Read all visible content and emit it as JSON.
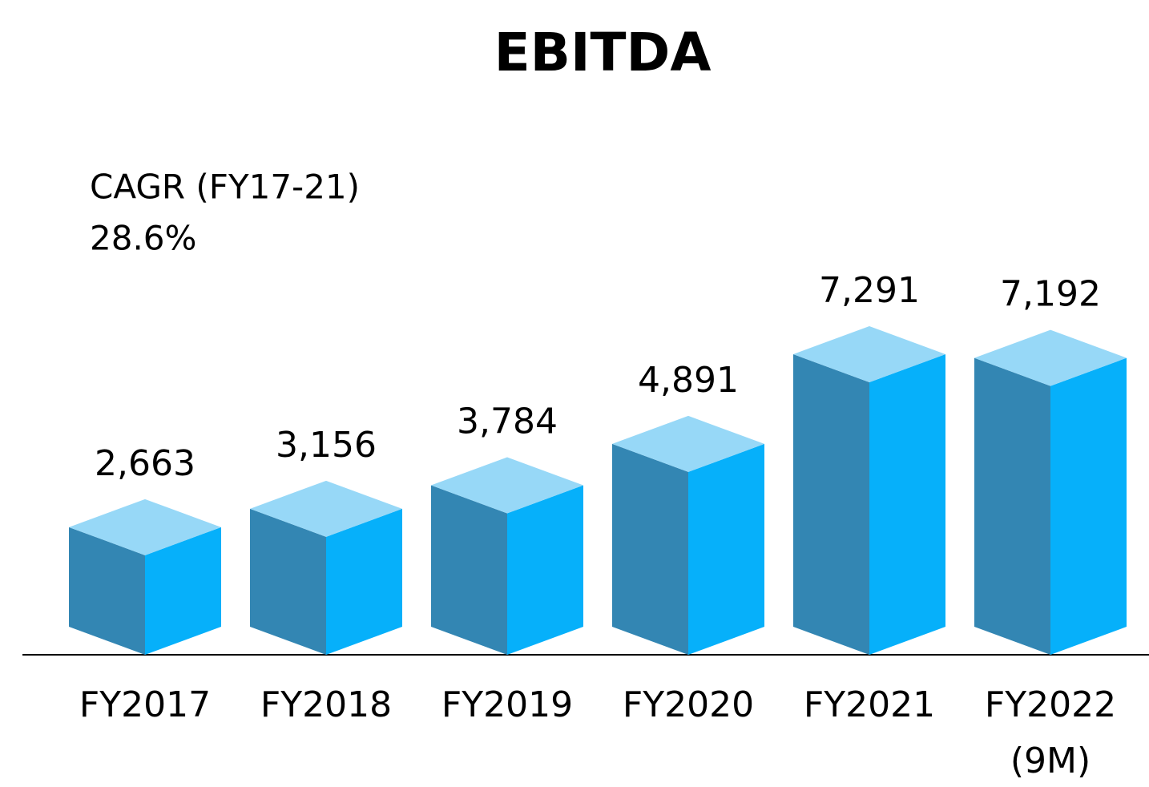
{
  "chart_data": {
    "type": "bar3d",
    "title": "EBITDA",
    "annotations": [
      "CAGR (FY17-21)",
      "28.6%"
    ],
    "categories": [
      "FY2017",
      "FY2018",
      "FY2019",
      "FY2020",
      "FY2021",
      "FY2022 (9M)"
    ],
    "values": [
      2663,
      3156,
      3784,
      4891,
      7291,
      7192
    ],
    "value_labels": [
      "2,663",
      "3,156",
      "3,784",
      "4,891",
      "7,291",
      "7,192"
    ],
    "colors": {
      "left": "#3386b3",
      "right": "#06b0fa",
      "top": "#97d8f7"
    }
  }
}
